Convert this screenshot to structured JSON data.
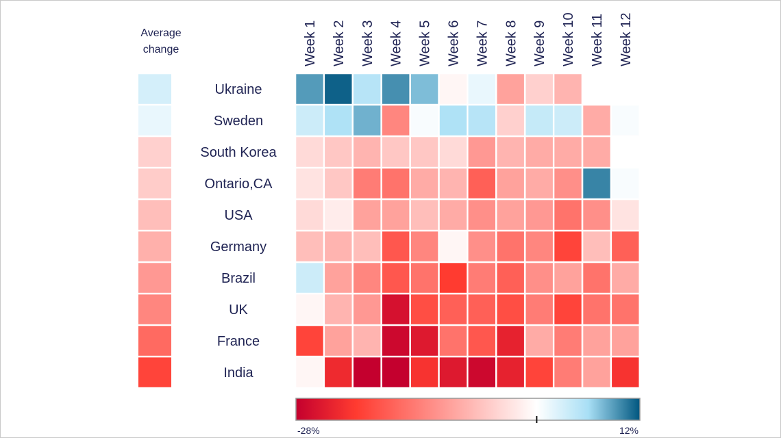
{
  "chart_data": {
    "type": "heatmap",
    "avg_label_line1": "Average",
    "avg_label_line2": "change",
    "columns": [
      "Week 1",
      "Week 2",
      "Week 3",
      "Week 4",
      "Week 5",
      "Week 6",
      "Week 7",
      "Week 8",
      "Week 9",
      "Week 10",
      "Week 11",
      "Week 12"
    ],
    "rows": [
      "Ukraine",
      "Sweden",
      "South Korea",
      "Ontario,CA",
      "USA",
      "Germany",
      "Brazil",
      "UK",
      "France",
      "India"
    ],
    "values": [
      [
        9,
        11.5,
        5,
        9.5,
        7.5,
        -1,
        1.5,
        -10,
        -5,
        -8,
        null,
        null
      ],
      [
        3.5,
        5.5,
        8,
        -13,
        0.5,
        5.5,
        5,
        -5,
        4,
        3.5,
        -9,
        0.5
      ],
      [
        -4,
        -6,
        -8,
        -6,
        -6,
        -4,
        -11,
        -8,
        -9,
        -9,
        -9,
        null
      ],
      [
        -3,
        -6,
        -14,
        -15,
        -9,
        -8,
        -17,
        -10,
        -9,
        -12,
        10,
        0.5
      ],
      [
        -4,
        -2,
        -10,
        -10,
        -7,
        -9,
        -12,
        -10,
        -11,
        -15,
        -12,
        -3
      ],
      [
        -7,
        -8,
        -7,
        -18,
        -13,
        -1,
        -12,
        -15,
        -13,
        -20,
        -7,
        -17
      ],
      [
        3.5,
        -10,
        -13,
        -18,
        -15,
        -21,
        -14,
        -17,
        -12,
        -10,
        -15,
        -9
      ],
      [
        -1,
        -8,
        -11,
        -26,
        -19,
        -17,
        -17,
        -19,
        -14,
        -20,
        -15,
        -15
      ],
      [
        -20,
        -10,
        -8,
        -27,
        -25,
        -15,
        -18,
        -24,
        -9,
        -14,
        -10,
        -10
      ],
      [
        -1,
        -23,
        -28,
        -28,
        -22,
        -25,
        -27,
        -24,
        -20,
        -14,
        -10,
        -22
      ]
    ],
    "average_change": [
      3,
      1.5,
      -5,
      -5.5,
      -7,
      -8.5,
      -11,
      -13,
      -16,
      -20
    ],
    "colorbar": {
      "min": -28,
      "max": 12,
      "min_label": "-28%",
      "max_label": "12%"
    },
    "colors": {
      "neg_dark": "#c4002e",
      "neg_mid": "#ff3b30",
      "neutral": "#ffffff",
      "pos_mid": "#a8dff5",
      "pos_dark": "#00567f",
      "text": "#1f2353"
    }
  }
}
